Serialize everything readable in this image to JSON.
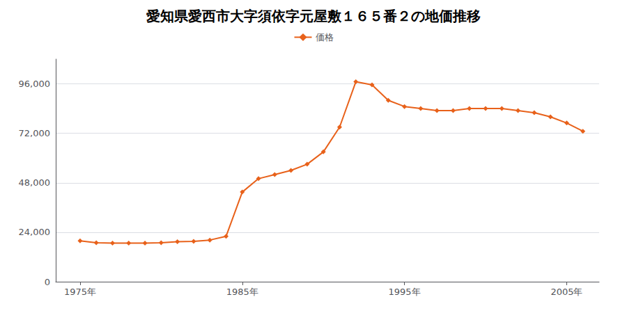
{
  "chart_data": {
    "type": "line",
    "title": "愛知県愛西市大字須依字元屋敷１６５番２の地価推移",
    "x": [
      1975,
      1976,
      1977,
      1978,
      1979,
      1980,
      1981,
      1982,
      1983,
      1984,
      1985,
      1986,
      1987,
      1988,
      1989,
      1990,
      1991,
      1992,
      1993,
      1994,
      1995,
      1996,
      1997,
      1998,
      1999,
      2000,
      2001,
      2002,
      2003,
      2004,
      2005,
      2006
    ],
    "series": [
      {
        "name": "価格",
        "color": "#E8611A",
        "marker": "diamond",
        "values": [
          19800,
          18900,
          18700,
          18700,
          18700,
          18900,
          19400,
          19600,
          20200,
          22000,
          43500,
          50000,
          52000,
          54000,
          57000,
          63000,
          75000,
          97000,
          95500,
          88000,
          85000,
          84000,
          83000,
          83000,
          84000,
          84000,
          84000,
          83000,
          82000,
          80000,
          77000,
          73000
        ]
      }
    ],
    "xlim": [
      1973.5,
      2007
    ],
    "xticks": [
      {
        "value": 1975,
        "label": "1975年"
      },
      {
        "value": 1985,
        "label": "1985年"
      },
      {
        "value": 1995,
        "label": "1995年"
      },
      {
        "value": 2005,
        "label": "2005年"
      }
    ],
    "ylim": [
      0,
      108000
    ],
    "yticks": [
      0,
      {
        "value": 24000,
        "label": "24,000"
      },
      {
        "value": 48000,
        "label": "48,000"
      },
      {
        "value": 72000,
        "label": "72,000"
      },
      {
        "value": 96000,
        "label": "96,000"
      }
    ],
    "grid": true,
    "legend": "top"
  }
}
